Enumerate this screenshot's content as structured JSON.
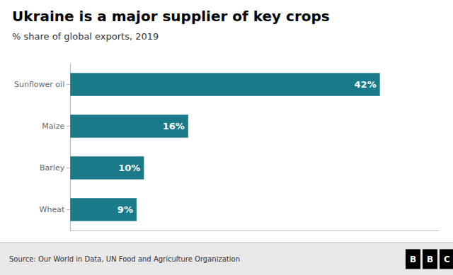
{
  "chart_data": {
    "type": "bar",
    "orientation": "horizontal",
    "title": "Ukraine is a major supplier of key crops",
    "subtitle": "% share of global exports, 2019",
    "categories": [
      "Sunflower oil",
      "Maize",
      "Barley",
      "Wheat"
    ],
    "values": [
      42,
      16,
      10,
      9
    ],
    "value_labels": [
      "42%",
      "16%",
      "10%",
      "9%"
    ],
    "data_labels": true,
    "color": "#1a7a8a",
    "xlim": [
      0,
      50
    ],
    "tick_labels": "y",
    "grid": false,
    "annotations": [
      {
        "text": "Source: Our World in Data, UN Food and Agriculture Organization"
      },
      {
        "text": "B"
      },
      {
        "text": "B"
      },
      {
        "text": "C"
      }
    ]
  }
}
